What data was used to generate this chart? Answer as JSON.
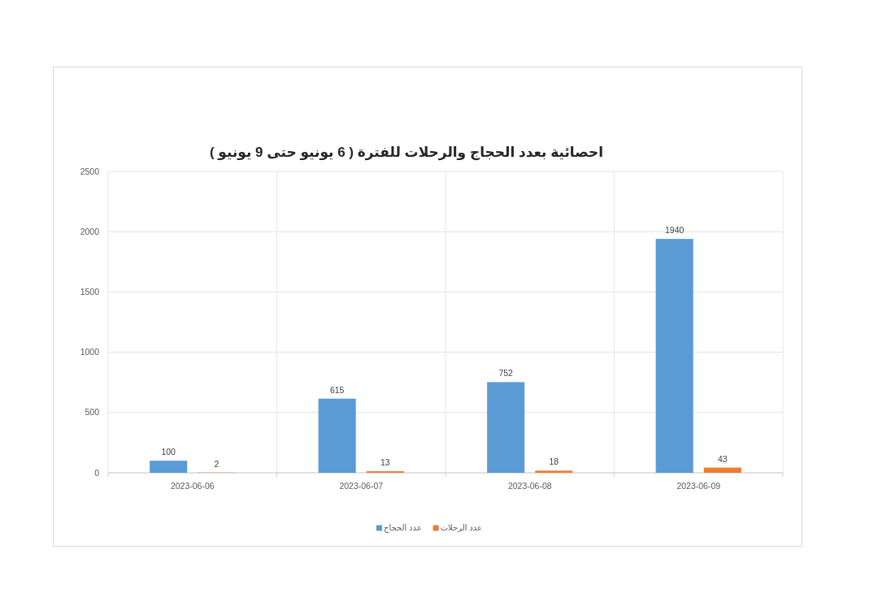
{
  "chart_data": {
    "type": "bar",
    "title": "احصائية بعدد الحجاج والرحلات للفترة ( 6 يونيو حتى 9 يونيو )",
    "categories": [
      "2023-06-06",
      "2023-06-07",
      "2023-06-08",
      "2023-06-09"
    ],
    "series": [
      {
        "name": "عدد الحجاج",
        "color": "#5b9bd5",
        "values": [
          100,
          615,
          752,
          1940
        ]
      },
      {
        "name": "عدد الرحلات",
        "color": "#ed7d31",
        "values": [
          2,
          13,
          18,
          43
        ]
      }
    ],
    "ylim": [
      0,
      2500
    ],
    "yticks": [
      0,
      500,
      1000,
      1500,
      2000,
      2500
    ],
    "grid": true,
    "legend": "bottom",
    "data_labels": true
  }
}
